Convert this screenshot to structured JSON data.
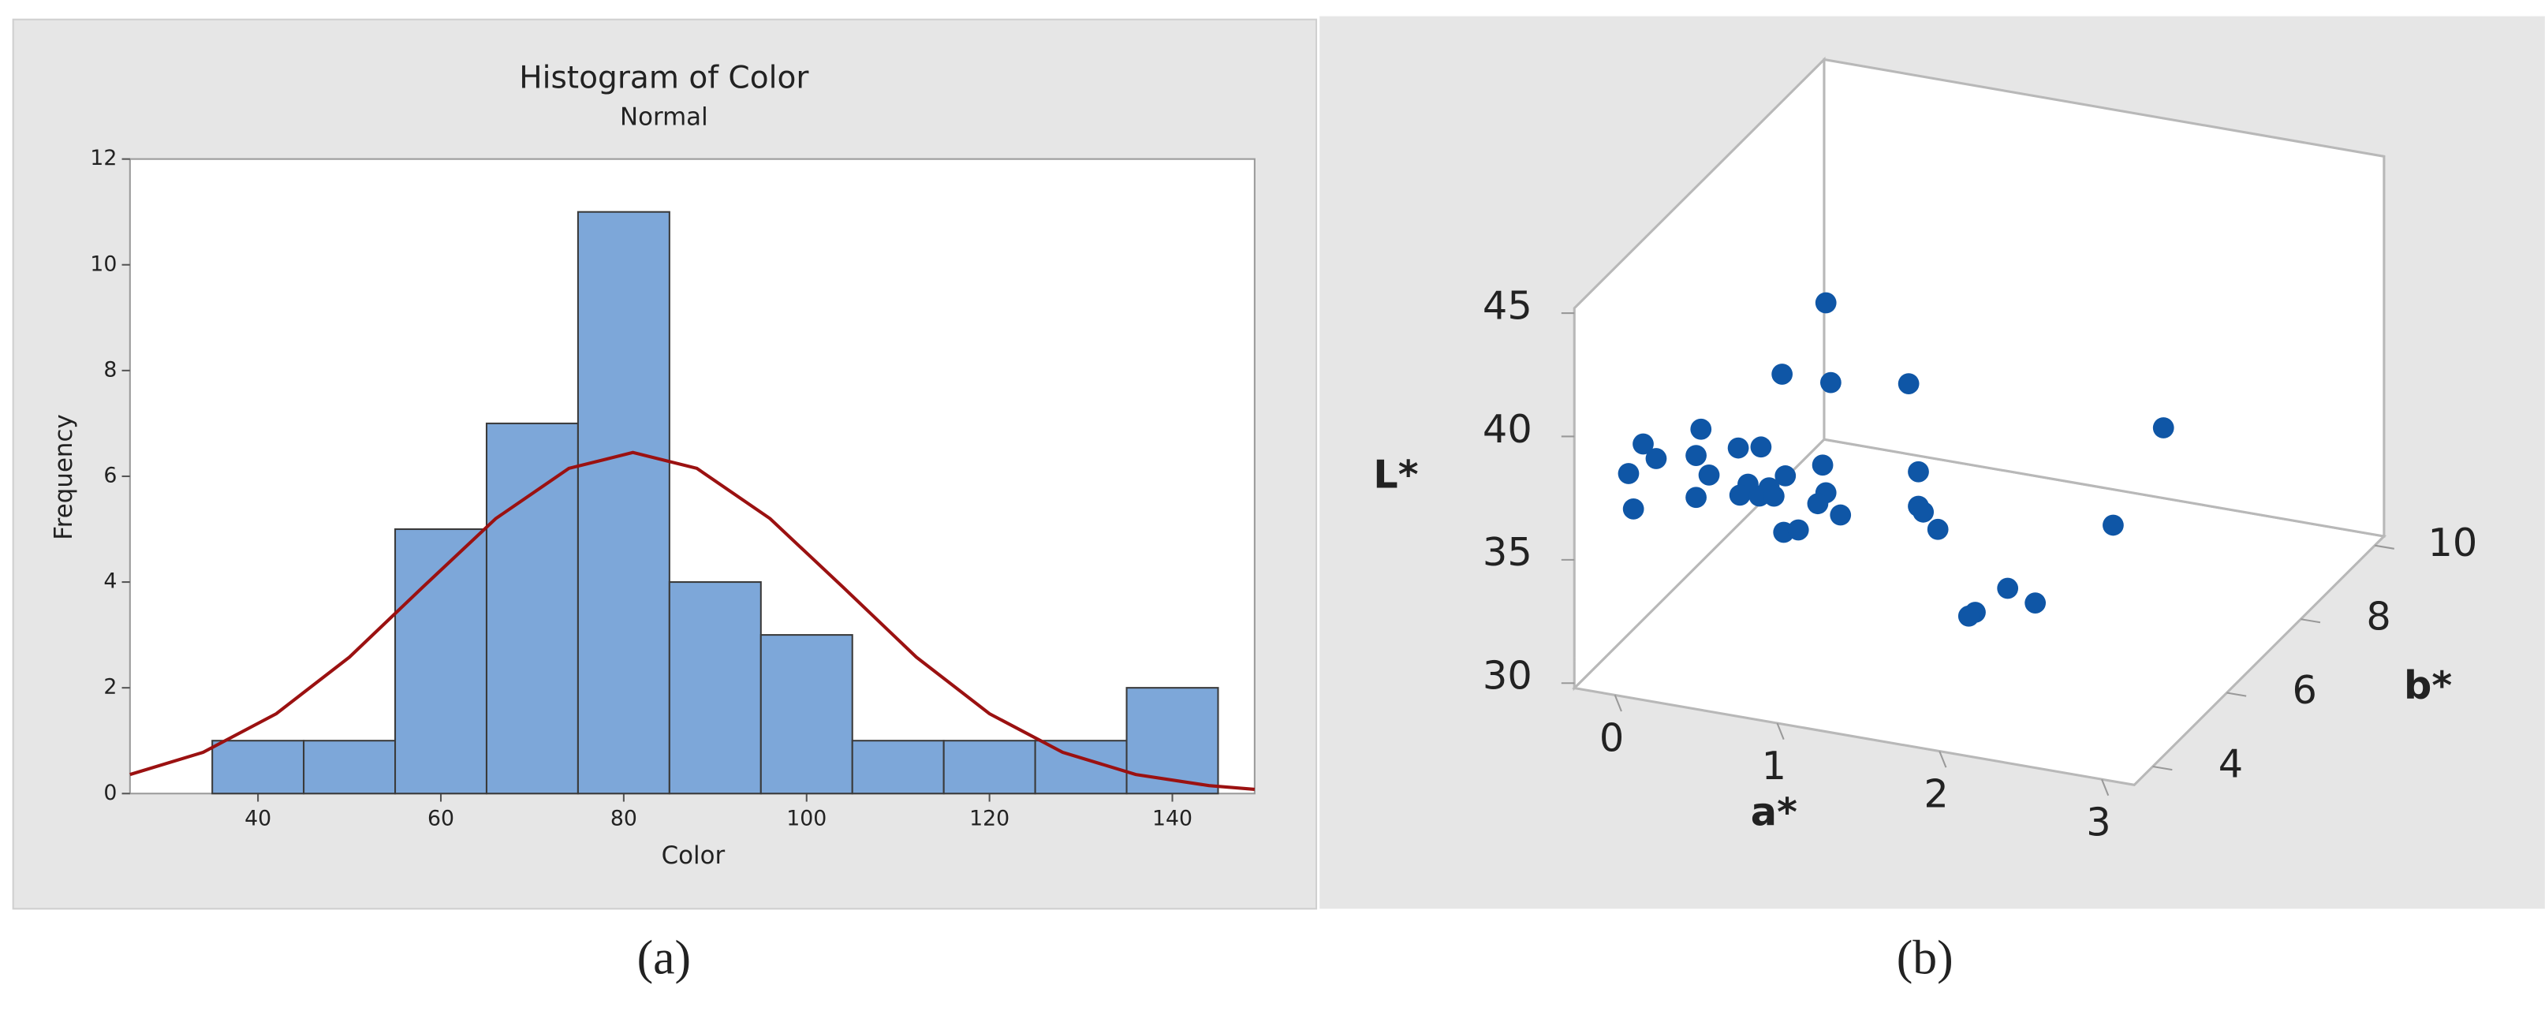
{
  "chart_data": [
    {
      "type": "histogram",
      "title": "Histogram of Color",
      "subtitle": "Normal",
      "x_label": "Color",
      "y_label": "Frequency",
      "caption": "(a)",
      "bins": [
        35,
        45,
        55,
        65,
        75,
        85,
        95,
        105,
        115,
        125,
        135,
        145
      ],
      "values": [
        1,
        1,
        5,
        7,
        11,
        4,
        3,
        1,
        1,
        1,
        2
      ],
      "color": "#7da7d9",
      "fit": {
        "x": [
          26,
          34,
          42,
          50,
          58,
          66,
          74,
          81,
          88,
          96,
          104,
          112,
          120,
          128,
          136,
          144,
          149
        ],
        "values": [
          0.36,
          0.78,
          1.51,
          2.58,
          3.9,
          5.2,
          6.15,
          6.45,
          6.15,
          5.2,
          3.9,
          2.58,
          1.51,
          0.78,
          0.36,
          0.15,
          0.08
        ],
        "color": "#9b1111"
      },
      "xlim": [
        26,
        149
      ],
      "xticks": [
        40,
        60,
        80,
        100,
        120,
        140
      ],
      "ylim": [
        0,
        12
      ],
      "yticks": [
        0,
        2,
        4,
        6,
        8,
        10,
        12
      ]
    },
    {
      "type": "scatter3d",
      "x_label": "a*",
      "y_label": "b*",
      "z_label": "L*",
      "caption": "(b)",
      "color": "#0f56a6",
      "x": [
        0.73,
        0.46,
        0.76,
        1.24,
        2.81,
        -0.04,
        0.06,
        -0.07,
        0.14,
        0.19,
        0.33,
        -0.03,
        0.01,
        0.71,
        1.3,
        0.48,
        0.25,
        0.38,
        0.2,
        -0.07,
        0.32,
        0.41,
        0.73,
        0.68,
        0.0,
        0.82,
        1.3,
        1.33,
        1.42,
        0.47,
        0.56,
        2.5,
        1.85,
        2.02,
        1.65,
        1.61
      ],
      "y": [
        6,
        6,
        6,
        6,
        6,
        6,
        4,
        6,
        4,
        6,
        6,
        4,
        6,
        6,
        6,
        6,
        6,
        6,
        6,
        6,
        6,
        6,
        6,
        6,
        4,
        6,
        6,
        6,
        6,
        6,
        6,
        6,
        6,
        6,
        6,
        6
      ],
      "z": [
        42.8,
        39.6,
        39.6,
        40.1,
        40.1,
        36.8,
        39.3,
        35.7,
        38.8,
        36.3,
        36.5,
        38.0,
        35.0,
        36.2,
        36.6,
        35.5,
        34.9,
        34.9,
        34.4,
        34.0,
        34.5,
        34.6,
        35.1,
        34.6,
        36.6,
        34.3,
        35.2,
        35.0,
        34.4,
        33.2,
        33.4,
        35.8,
        32.5,
        32.1,
        31.3,
        31.1
      ],
      "xlim": [
        -0.25,
        3.2
      ],
      "xticks": [
        0,
        1,
        2,
        3
      ],
      "ylim": [
        3.5,
        10.25
      ],
      "yticks": [
        4,
        6,
        8,
        10
      ],
      "zlim": [
        29.8,
        45.2
      ],
      "zticks": [
        30,
        35,
        40,
        45
      ]
    }
  ]
}
